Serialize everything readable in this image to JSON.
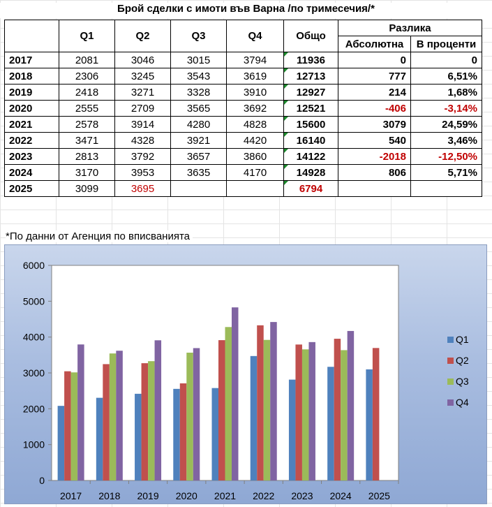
{
  "title": "Брой сделки с имоти във Варна /по тримесечия/*",
  "headers": {
    "q1": "Q1",
    "q2": "Q2",
    "q3": "Q3",
    "q4": "Q4",
    "total": "Общо",
    "diff": "Разлика",
    "abs": "Абсолютна",
    "pct": "В проценти"
  },
  "rows": [
    {
      "year": "2017",
      "q1": "2081",
      "q2": "3046",
      "q3": "3015",
      "q4": "3794",
      "total": "11936",
      "abs": "0",
      "pct": "0"
    },
    {
      "year": "2018",
      "q1": "2306",
      "q2": "3245",
      "q3": "3543",
      "q4": "3619",
      "total": "12713",
      "abs": "777",
      "pct": "6,51%"
    },
    {
      "year": "2019",
      "q1": "2418",
      "q2": "3271",
      "q3": "3328",
      "q4": "3910",
      "total": "12927",
      "abs": "214",
      "pct": "1,68%"
    },
    {
      "year": "2020",
      "q1": "2555",
      "q2": "2709",
      "q3": "3565",
      "q4": "3692",
      "total": "12521",
      "abs": "-406",
      "pct": "-3,14%"
    },
    {
      "year": "2021",
      "q1": "2578",
      "q2": "3914",
      "q3": "4280",
      "q4": "4828",
      "total": "15600",
      "abs": "3079",
      "pct": "24,59%"
    },
    {
      "year": "2022",
      "q1": "3471",
      "q2": "4328",
      "q3": "3921",
      "q4": "4420",
      "total": "16140",
      "abs": "540",
      "pct": "3,46%"
    },
    {
      "year": "2023",
      "q1": "2813",
      "q2": "3792",
      "q3": "3657",
      "q4": "3860",
      "total": "14122",
      "abs": "-2018",
      "pct": "-12,50%"
    },
    {
      "year": "2024",
      "q1": "3170",
      "q2": "3953",
      "q3": "3635",
      "q4": "4170",
      "total": "14928",
      "abs": "806",
      "pct": "5,71%"
    },
    {
      "year": "2025",
      "q1": "3099",
      "q2": "3695",
      "q3": "",
      "q4": "",
      "total": "6794",
      "abs": "",
      "pct": ""
    }
  ],
  "footnote": "*По данни от Агенция по вписванията",
  "colors": {
    "negative": "#c00000",
    "q1": "#4f81bd",
    "q2": "#c0504d",
    "q3": "#9bbb59",
    "q4": "#8064a2"
  },
  "chart_data": {
    "type": "bar",
    "categories": [
      "2017",
      "2018",
      "2019",
      "2020",
      "2021",
      "2022",
      "2023",
      "2024",
      "2025"
    ],
    "series": [
      {
        "name": "Q1",
        "values": [
          2081,
          2306,
          2418,
          2555,
          2578,
          3471,
          2813,
          3170,
          3099
        ]
      },
      {
        "name": "Q2",
        "values": [
          3046,
          3245,
          3271,
          2709,
          3914,
          4328,
          3792,
          3953,
          3695
        ]
      },
      {
        "name": "Q3",
        "values": [
          3015,
          3543,
          3328,
          3565,
          4280,
          3921,
          3657,
          3635,
          null
        ]
      },
      {
        "name": "Q4",
        "values": [
          3794,
          3619,
          3910,
          3692,
          4828,
          4420,
          3860,
          4170,
          null
        ]
      }
    ],
    "yticks": [
      0,
      1000,
      2000,
      3000,
      4000,
      5000,
      6000
    ],
    "ylim": [
      0,
      6000
    ],
    "legend": "right",
    "grid": false
  }
}
